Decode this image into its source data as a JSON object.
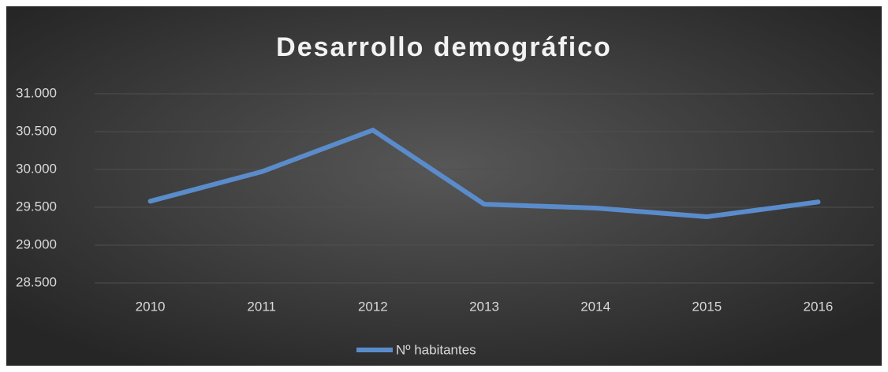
{
  "chart_data": {
    "type": "line",
    "title": "Desarrollo demográfico",
    "categories": [
      "2010",
      "2011",
      "2012",
      "2013",
      "2014",
      "2015",
      "2016"
    ],
    "series": [
      {
        "name": "Nº habitantes",
        "color": "#5a8ccb",
        "values": [
          29580,
          29970,
          30520,
          29540,
          29490,
          29375,
          29570
        ]
      }
    ],
    "ylim": [
      28500,
      31000
    ],
    "yticks": [
      {
        "value": 28500,
        "label": "28.500"
      },
      {
        "value": 29000,
        "label": "29.000"
      },
      {
        "value": 29500,
        "label": "29.500"
      },
      {
        "value": 30000,
        "label": "30.000"
      },
      {
        "value": 30500,
        "label": "30.500"
      },
      {
        "value": 31000,
        "label": "31.000"
      }
    ],
    "grid": true,
    "legend": "bottom"
  }
}
